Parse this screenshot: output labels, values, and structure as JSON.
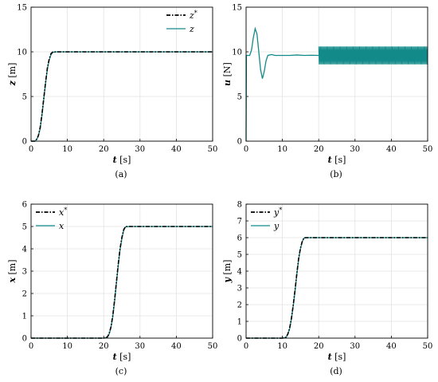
{
  "figure": {
    "colors": {
      "reference": "#000000",
      "actual": "#138a8a",
      "grid": "#e2e2e2",
      "axis": "#000000"
    }
  },
  "chart_data": [
    {
      "type": "line",
      "panel_label": "(a)",
      "xlabel": "t [s]",
      "ylabel": "z [m]",
      "xlim": [
        0,
        50
      ],
      "ylim": [
        0,
        15
      ],
      "xticks": [
        "0",
        "10",
        "20",
        "30",
        "40",
        "50"
      ],
      "yticks": [
        "0",
        "5",
        "10",
        "15"
      ],
      "grid": true,
      "legend_position": "top-right",
      "series": [
        {
          "name": "z*",
          "style": "dash-dot",
          "color": "#000000",
          "x": [
            0,
            1,
            1.5,
            2,
            2.5,
            3,
            3.5,
            4,
            4.5,
            5,
            5.5,
            6,
            7,
            10,
            20,
            30,
            40,
            50
          ],
          "y": [
            0,
            0,
            0.2,
            0.6,
            1.5,
            3.0,
            4.8,
            6.6,
            8.2,
            9.2,
            9.8,
            10,
            10,
            10,
            10,
            10,
            10,
            10
          ]
        },
        {
          "name": "z",
          "style": "solid",
          "color": "#138a8a",
          "x": [
            0,
            1,
            1.5,
            2,
            2.5,
            3,
            3.5,
            4,
            4.5,
            5,
            5.5,
            6,
            7,
            10,
            20,
            30,
            40,
            50
          ],
          "y": [
            0,
            0,
            0.15,
            0.55,
            1.4,
            2.9,
            4.7,
            6.5,
            8.1,
            9.1,
            9.7,
            9.95,
            10,
            10,
            10,
            10,
            10,
            10
          ]
        }
      ]
    },
    {
      "type": "line",
      "panel_label": "(b)",
      "xlabel": "t [s]",
      "ylabel": "u [N]",
      "xlim": [
        0,
        50
      ],
      "ylim": [
        0,
        15
      ],
      "xticks": [
        "0",
        "10",
        "20",
        "30",
        "40",
        "50"
      ],
      "yticks": [
        "0",
        "5",
        "10",
        "15"
      ],
      "grid": true,
      "legend_position": "none",
      "oscillation": {
        "start": 20,
        "end": 50,
        "low": 8.6,
        "high": 10.6,
        "period": 0.25
      },
      "series": [
        {
          "name": "",
          "style": "solid",
          "color": "#138a8a",
          "x": [
            0,
            0.1,
            0.3,
            1,
            1.5,
            2,
            2.5,
            3,
            3.5,
            4,
            4.5,
            5,
            5.5,
            6,
            7,
            8,
            10,
            12,
            14,
            16,
            18,
            20
          ],
          "y": [
            0,
            9.6,
            9.6,
            9.6,
            10.2,
            11.6,
            12.6,
            12.0,
            10.0,
            8.0,
            7.0,
            7.8,
            9.0,
            9.6,
            9.7,
            9.6,
            9.6,
            9.6,
            9.65,
            9.6,
            9.62,
            9.6
          ]
        }
      ]
    },
    {
      "type": "line",
      "panel_label": "(c)",
      "xlabel": "t [s]",
      "ylabel": "x [m]",
      "xlim": [
        0,
        50
      ],
      "ylim": [
        0,
        6
      ],
      "xticks": [
        "0",
        "10",
        "20",
        "30",
        "40",
        "50"
      ],
      "yticks": [
        "0",
        "1",
        "2",
        "3",
        "4",
        "5",
        "6"
      ],
      "grid": true,
      "legend_position": "top-left",
      "series": [
        {
          "name": "x*",
          "style": "dash-dot",
          "color": "#000000",
          "x": [
            0,
            20,
            21,
            21.5,
            22,
            22.5,
            23,
            23.5,
            24,
            24.5,
            25,
            25.5,
            26,
            27,
            30,
            40,
            50
          ],
          "y": [
            0,
            0,
            0.05,
            0.2,
            0.5,
            1.0,
            1.7,
            2.5,
            3.3,
            4.0,
            4.5,
            4.85,
            5,
            5,
            5,
            5,
            5
          ]
        },
        {
          "name": "x",
          "style": "solid",
          "color": "#138a8a",
          "x": [
            0,
            20,
            21,
            21.5,
            22,
            22.5,
            23,
            23.5,
            24,
            24.5,
            25,
            25.5,
            26,
            27,
            30,
            40,
            50
          ],
          "y": [
            0,
            0,
            0.04,
            0.18,
            0.47,
            0.95,
            1.65,
            2.45,
            3.25,
            3.95,
            4.45,
            4.82,
            4.98,
            5,
            5,
            5,
            5
          ]
        }
      ]
    },
    {
      "type": "line",
      "panel_label": "(d)",
      "xlabel": "t [s]",
      "ylabel": "y [m]",
      "xlim": [
        0,
        50
      ],
      "ylim": [
        0,
        8
      ],
      "xticks": [
        "0",
        "10",
        "20",
        "30",
        "40",
        "50"
      ],
      "yticks": [
        "0",
        "1",
        "2",
        "3",
        "4",
        "5",
        "6",
        "7",
        "8"
      ],
      "grid": true,
      "legend_position": "top-left",
      "series": [
        {
          "name": "y*",
          "style": "dash-dot",
          "color": "#000000",
          "x": [
            0,
            10,
            11,
            11.5,
            12,
            12.5,
            13,
            13.5,
            14,
            14.5,
            15,
            15.5,
            16,
            17,
            20,
            30,
            40,
            50
          ],
          "y": [
            0,
            0,
            0.05,
            0.25,
            0.6,
            1.2,
            2.0,
            2.9,
            3.9,
            4.8,
            5.4,
            5.8,
            6,
            6,
            6,
            6,
            6,
            6
          ]
        },
        {
          "name": "y",
          "style": "solid",
          "color": "#138a8a",
          "x": [
            0,
            10,
            11,
            11.5,
            12,
            12.5,
            13,
            13.5,
            14,
            14.5,
            15,
            15.5,
            16,
            17,
            20,
            30,
            40,
            50
          ],
          "y": [
            0,
            0,
            0.04,
            0.22,
            0.56,
            1.15,
            1.95,
            2.85,
            3.85,
            4.75,
            5.35,
            5.78,
            5.98,
            6,
            6,
            6,
            6,
            6
          ]
        }
      ]
    }
  ]
}
